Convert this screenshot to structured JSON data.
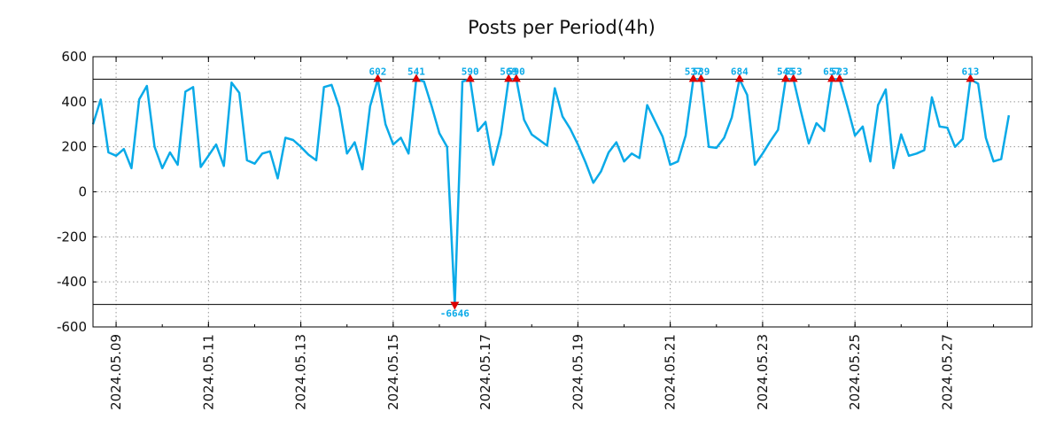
{
  "chart_data": {
    "type": "line",
    "title": "Posts per Period(4h)",
    "xlabel": "",
    "ylabel": "",
    "ylim": [
      -600,
      600
    ],
    "xlim": [
      "2024-05-08 12:00",
      "2024-05-28 20:00"
    ],
    "grid": true,
    "legend": "none",
    "ytick_labels": [
      "600",
      "400",
      "200",
      "0",
      "-200",
      "-400",
      "-600"
    ],
    "xtick_labels": [
      "2024.05.09",
      "2024.05.11",
      "2024.05.13",
      "2024.05.15",
      "2024.05.17",
      "2024.05.19",
      "2024.05.21",
      "2024.05.23",
      "2024.05.25",
      "2024.05.27"
    ],
    "threshold_lines": [
      500,
      -500
    ],
    "series": [
      {
        "name": "posts",
        "color": "#0aaae8",
        "points": [
          [
            "2024-05-08 12:00",
            300
          ],
          [
            "2024-05-08 16:00",
            410
          ],
          [
            "2024-05-08 20:00",
            175
          ],
          [
            "2024-05-09 00:00",
            160
          ],
          [
            "2024-05-09 04:00",
            190
          ],
          [
            "2024-05-09 08:00",
            105
          ],
          [
            "2024-05-09 12:00",
            410
          ],
          [
            "2024-05-09 16:00",
            470
          ],
          [
            "2024-05-09 20:00",
            200
          ],
          [
            "2024-05-10 00:00",
            105
          ],
          [
            "2024-05-10 04:00",
            175
          ],
          [
            "2024-05-10 08:00",
            120
          ],
          [
            "2024-05-10 12:00",
            445
          ],
          [
            "2024-05-10 16:00",
            465
          ],
          [
            "2024-05-10 20:00",
            110
          ],
          [
            "2024-05-11 00:00",
            160
          ],
          [
            "2024-05-11 04:00",
            210
          ],
          [
            "2024-05-11 08:00",
            115
          ],
          [
            "2024-05-11 12:00",
            485
          ],
          [
            "2024-05-11 16:00",
            440
          ],
          [
            "2024-05-11 20:00",
            140
          ],
          [
            "2024-05-12 00:00",
            125
          ],
          [
            "2024-05-12 04:00",
            170
          ],
          [
            "2024-05-12 08:00",
            180
          ],
          [
            "2024-05-12 12:00",
            60
          ],
          [
            "2024-05-12 16:00",
            240
          ],
          [
            "2024-05-12 20:00",
            230
          ],
          [
            "2024-05-13 00:00",
            200
          ],
          [
            "2024-05-13 04:00",
            165
          ],
          [
            "2024-05-13 08:00",
            140
          ],
          [
            "2024-05-13 12:00",
            465
          ],
          [
            "2024-05-13 16:00",
            475
          ],
          [
            "2024-05-13 20:00",
            375
          ],
          [
            "2024-05-14 00:00",
            170
          ],
          [
            "2024-05-14 04:00",
            220
          ],
          [
            "2024-05-14 08:00",
            100
          ],
          [
            "2024-05-14 12:00",
            380
          ],
          [
            "2024-05-14 16:00",
            500
          ],
          [
            "2024-05-14 20:00",
            300
          ],
          [
            "2024-05-15 00:00",
            210
          ],
          [
            "2024-05-15 04:00",
            240
          ],
          [
            "2024-05-15 08:00",
            170
          ],
          [
            "2024-05-15 12:00",
            500
          ],
          [
            "2024-05-15 16:00",
            490
          ],
          [
            "2024-05-15 20:00",
            380
          ],
          [
            "2024-05-16 00:00",
            260
          ],
          [
            "2024-05-16 04:00",
            200
          ],
          [
            "2024-05-16 08:00",
            -500
          ],
          [
            "2024-05-16 12:00",
            490
          ],
          [
            "2024-05-16 16:00",
            500
          ],
          [
            "2024-05-16 20:00",
            270
          ],
          [
            "2024-05-17 00:00",
            310
          ],
          [
            "2024-05-17 04:00",
            120
          ],
          [
            "2024-05-17 08:00",
            255
          ],
          [
            "2024-05-17 12:00",
            500
          ],
          [
            "2024-05-17 16:00",
            500
          ],
          [
            "2024-05-17 20:00",
            320
          ],
          [
            "2024-05-18 00:00",
            255
          ],
          [
            "2024-05-18 04:00",
            230
          ],
          [
            "2024-05-18 08:00",
            205
          ],
          [
            "2024-05-18 12:00",
            460
          ],
          [
            "2024-05-18 16:00",
            335
          ],
          [
            "2024-05-18 20:00",
            280
          ],
          [
            "2024-05-19 00:00",
            210
          ],
          [
            "2024-05-19 04:00",
            130
          ],
          [
            "2024-05-19 08:00",
            40
          ],
          [
            "2024-05-19 12:00",
            90
          ],
          [
            "2024-05-19 16:00",
            175
          ],
          [
            "2024-05-19 20:00",
            220
          ],
          [
            "2024-05-20 00:00",
            135
          ],
          [
            "2024-05-20 04:00",
            170
          ],
          [
            "2024-05-20 08:00",
            150
          ],
          [
            "2024-05-20 12:00",
            385
          ],
          [
            "2024-05-20 16:00",
            315
          ],
          [
            "2024-05-20 20:00",
            245
          ],
          [
            "2024-05-21 00:00",
            120
          ],
          [
            "2024-05-21 04:00",
            135
          ],
          [
            "2024-05-21 08:00",
            250
          ],
          [
            "2024-05-21 12:00",
            500
          ],
          [
            "2024-05-21 16:00",
            500
          ],
          [
            "2024-05-21 20:00",
            200
          ],
          [
            "2024-05-22 00:00",
            195
          ],
          [
            "2024-05-22 04:00",
            240
          ],
          [
            "2024-05-22 08:00",
            330
          ],
          [
            "2024-05-22 12:00",
            500
          ],
          [
            "2024-05-22 16:00",
            430
          ],
          [
            "2024-05-22 20:00",
            120
          ],
          [
            "2024-05-23 00:00",
            170
          ],
          [
            "2024-05-23 04:00",
            225
          ],
          [
            "2024-05-23 08:00",
            275
          ],
          [
            "2024-05-23 12:00",
            500
          ],
          [
            "2024-05-23 16:00",
            500
          ],
          [
            "2024-05-23 20:00",
            355
          ],
          [
            "2024-05-24 00:00",
            215
          ],
          [
            "2024-05-24 04:00",
            305
          ],
          [
            "2024-05-24 08:00",
            270
          ],
          [
            "2024-05-24 12:00",
            500
          ],
          [
            "2024-05-24 16:00",
            500
          ],
          [
            "2024-05-24 20:00",
            380
          ],
          [
            "2024-05-25 00:00",
            250
          ],
          [
            "2024-05-25 04:00",
            290
          ],
          [
            "2024-05-25 08:00",
            135
          ],
          [
            "2024-05-25 12:00",
            385
          ],
          [
            "2024-05-25 16:00",
            455
          ],
          [
            "2024-05-25 20:00",
            105
          ],
          [
            "2024-05-26 00:00",
            255
          ],
          [
            "2024-05-26 04:00",
            160
          ],
          [
            "2024-05-26 08:00",
            170
          ],
          [
            "2024-05-26 12:00",
            185
          ],
          [
            "2024-05-26 16:00",
            420
          ],
          [
            "2024-05-26 20:00",
            290
          ],
          [
            "2024-05-27 00:00",
            285
          ],
          [
            "2024-05-27 04:00",
            200
          ],
          [
            "2024-05-27 08:00",
            235
          ],
          [
            "2024-05-27 12:00",
            500
          ],
          [
            "2024-05-27 16:00",
            480
          ],
          [
            "2024-05-27 20:00",
            240
          ],
          [
            "2024-05-28 00:00",
            135
          ],
          [
            "2024-05-28 04:00",
            145
          ],
          [
            "2024-05-28 08:00",
            340
          ]
        ]
      }
    ],
    "annotations": [
      {
        "x": "2024-05-14 16:00",
        "y": 500,
        "text": "602",
        "marker": "up"
      },
      {
        "x": "2024-05-15 12:00",
        "y": 500,
        "text": "541",
        "marker": "up"
      },
      {
        "x": "2024-05-16 08:00",
        "y": -500,
        "text": "-6646",
        "marker": "down"
      },
      {
        "x": "2024-05-16 16:00",
        "y": 500,
        "text": "590",
        "marker": "up"
      },
      {
        "x": "2024-05-17 12:00",
        "y": 500,
        "text": "569",
        "marker": "up"
      },
      {
        "x": "2024-05-17 16:00",
        "y": 500,
        "text": "590",
        "marker": "up"
      },
      {
        "x": "2024-05-21 12:00",
        "y": 500,
        "text": "537",
        "marker": "up"
      },
      {
        "x": "2024-05-21 16:00",
        "y": 500,
        "text": "539",
        "marker": "up"
      },
      {
        "x": "2024-05-22 12:00",
        "y": 500,
        "text": "684",
        "marker": "up"
      },
      {
        "x": "2024-05-23 12:00",
        "y": 500,
        "text": "545",
        "marker": "up"
      },
      {
        "x": "2024-05-23 16:00",
        "y": 500,
        "text": "553",
        "marker": "up"
      },
      {
        "x": "2024-05-24 12:00",
        "y": 500,
        "text": "657",
        "marker": "up"
      },
      {
        "x": "2024-05-24 16:00",
        "y": 500,
        "text": "523",
        "marker": "up"
      },
      {
        "x": "2024-05-27 12:00",
        "y": 500,
        "text": "613",
        "marker": "up"
      }
    ],
    "colors": {
      "line": "#0aaae8",
      "marker": "#dd0000",
      "label": "#0aaae8",
      "threshold": "#000000",
      "grid": "#999999"
    }
  }
}
